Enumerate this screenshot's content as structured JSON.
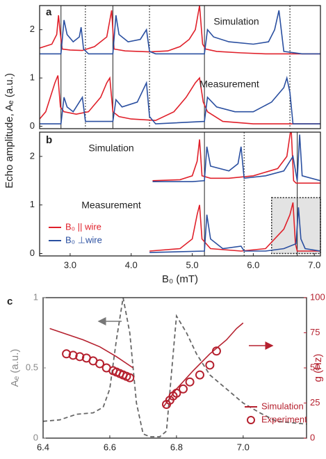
{
  "chart_data": [
    {
      "type": "line",
      "panel_label": "a",
      "ylabel": "Echo amplitude, Aₑ (a.u.)",
      "xlim": [
        2.5,
        7.1
      ],
      "ylim": [
        -0.05,
        2.5
      ],
      "yticks": [
        0,
        1,
        2
      ],
      "annotations": [
        "Simulation",
        "Measurement"
      ],
      "vlines": [
        {
          "value": 2.85,
          "style": "solid"
        },
        {
          "value": 3.25,
          "style": "dotted"
        },
        {
          "value": 3.7,
          "style": "solid"
        },
        {
          "value": 4.3,
          "style": "dotted"
        },
        {
          "value": 5.2,
          "style": "solid"
        },
        {
          "value": 6.6,
          "style": "dotted"
        }
      ],
      "series": [
        {
          "color": "#e0202a",
          "x": [
            2.5,
            2.7,
            2.78,
            2.81,
            2.84,
            2.87,
            3.0,
            3.2,
            3.4,
            3.6,
            3.68,
            3.72,
            3.9,
            4.3,
            4.6,
            4.8,
            4.95,
            5.05,
            5.12,
            5.17,
            5.22,
            5.4,
            5.8,
            6.2,
            6.6,
            7.1
          ],
          "values": [
            1.62,
            1.7,
            1.9,
            2.3,
            1.9,
            1.6,
            1.58,
            1.57,
            1.65,
            1.85,
            2.4,
            1.6,
            1.56,
            1.54,
            1.56,
            1.65,
            1.8,
            2.0,
            2.5,
            1.7,
            1.6,
            1.55,
            1.52,
            1.5,
            1.5,
            1.5
          ]
        },
        {
          "color": "#2a4fa0",
          "x": [
            2.5,
            2.85,
            2.9,
            2.95,
            3.05,
            3.15,
            3.18,
            3.22,
            3.3,
            3.7,
            3.75,
            3.8,
            3.95,
            4.15,
            4.25,
            4.3,
            4.4,
            5.2,
            5.25,
            5.35,
            5.6,
            6.0,
            6.25,
            6.35,
            6.42,
            6.5,
            6.8,
            7.1
          ],
          "values": [
            1.5,
            1.5,
            2.2,
            1.9,
            1.75,
            1.85,
            2.05,
            1.6,
            1.5,
            1.5,
            2.3,
            1.9,
            1.75,
            1.8,
            2.0,
            1.55,
            1.5,
            1.5,
            2.0,
            1.85,
            1.75,
            1.7,
            1.75,
            2.0,
            2.4,
            1.55,
            1.5,
            1.5
          ]
        },
        {
          "color": "#e0202a",
          "x": [
            2.5,
            2.6,
            2.75,
            2.8,
            2.84,
            2.9,
            3.1,
            3.3,
            3.5,
            3.6,
            3.65,
            3.7,
            3.8,
            4.0,
            4.4,
            4.7,
            4.9,
            5.05,
            5.12,
            5.18,
            5.25,
            5.5,
            6.0,
            6.6,
            7.1
          ],
          "values": [
            0.15,
            0.3,
            0.9,
            1.05,
            0.4,
            0.3,
            0.25,
            0.3,
            0.6,
            0.9,
            1.0,
            0.3,
            0.2,
            0.15,
            0.12,
            0.3,
            0.6,
            0.9,
            1.0,
            0.5,
            0.3,
            0.1,
            0.05,
            0.05,
            0.05
          ]
        },
        {
          "color": "#2a4fa0",
          "x": [
            2.5,
            2.85,
            2.9,
            2.95,
            3.05,
            3.15,
            3.2,
            3.25,
            3.7,
            3.75,
            3.85,
            4.1,
            4.25,
            4.3,
            4.4,
            5.2,
            5.25,
            5.4,
            5.7,
            6.0,
            6.3,
            6.5,
            6.55,
            6.6,
            6.65,
            7.1
          ],
          "values": [
            0.05,
            0.05,
            0.6,
            0.4,
            0.3,
            0.5,
            0.6,
            0.1,
            0.1,
            0.55,
            0.4,
            0.5,
            0.9,
            0.2,
            0.05,
            0.1,
            0.6,
            0.4,
            0.3,
            0.3,
            0.5,
            0.8,
            1.0,
            0.7,
            0.05,
            0.05
          ]
        }
      ]
    },
    {
      "type": "line",
      "panel_label": "b",
      "xlabel": "B₀ (mT)",
      "xlim": [
        2.5,
        7.1
      ],
      "ylim": [
        -0.05,
        2.5
      ],
      "yticks": [
        0,
        1,
        2
      ],
      "xticks": [
        {
          "value": 3,
          "label": "3.0"
        },
        {
          "value": 4,
          "label": "4.0"
        },
        {
          "value": 5,
          "label": "5.0"
        },
        {
          "value": 6,
          "label": "6.0"
        },
        {
          "value": 7,
          "label": "7.0"
        }
      ],
      "annotations": [
        "Simulation",
        "Measurement"
      ],
      "vlines": [
        {
          "value": 5.2,
          "style": "solid"
        },
        {
          "value": 5.85,
          "style": "dotted"
        },
        {
          "value": 6.72,
          "style": "solid"
        }
      ],
      "highlight": {
        "xlim": [
          6.3,
          7.1
        ],
        "ylim": [
          0,
          1.15
        ]
      },
      "series": [
        {
          "color": "#e0202a",
          "x": [
            4.35,
            4.8,
            5.0,
            5.08,
            5.12,
            5.16,
            5.3,
            5.6,
            6.0,
            6.4,
            6.55,
            6.62,
            6.66,
            6.7,
            6.9,
            7.1
          ],
          "values": [
            1.5,
            1.52,
            1.6,
            1.9,
            2.35,
            1.6,
            1.55,
            1.55,
            1.6,
            1.75,
            2.0,
            2.6,
            1.5,
            1.45,
            1.45,
            1.45
          ]
        },
        {
          "color": "#2a4fa0",
          "x": [
            4.35,
            5.0,
            5.2,
            5.24,
            5.3,
            5.6,
            5.75,
            5.8,
            5.85,
            6.2,
            6.5,
            6.65,
            6.72,
            6.76,
            6.8,
            7.1
          ],
          "values": [
            1.48,
            1.48,
            1.5,
            2.2,
            1.8,
            1.7,
            1.85,
            2.2,
            1.55,
            1.6,
            1.7,
            2.0,
            1.5,
            2.45,
            1.6,
            1.5
          ]
        },
        {
          "name": "B₀ || wire",
          "color": "#e0202a",
          "x": [
            4.3,
            4.8,
            5.0,
            5.08,
            5.12,
            5.16,
            5.3,
            5.8,
            6.2,
            6.5,
            6.6,
            6.65,
            6.69,
            6.72,
            6.9,
            7.1
          ],
          "values": [
            0.05,
            0.1,
            0.3,
            0.8,
            1.0,
            0.3,
            0.1,
            0.05,
            0.1,
            0.5,
            0.8,
            1.05,
            0.2,
            0.05,
            0.05,
            0.05
          ]
        },
        {
          "name": "B₀ ⊥wire",
          "color": "#2a4fa0",
          "x": [
            4.3,
            5.2,
            5.24,
            5.3,
            5.5,
            5.8,
            5.85,
            6.2,
            6.5,
            6.7,
            6.74,
            6.78,
            6.85,
            7.1
          ],
          "values": [
            0.02,
            0.05,
            0.8,
            0.3,
            0.1,
            0.15,
            0.05,
            0.05,
            0.1,
            0.2,
            0.95,
            0.3,
            0.1,
            0.05
          ]
        }
      ]
    },
    {
      "type": "line",
      "panel_label": "c",
      "xlabel": "B₀ (mT)",
      "ylabel": "Aₑ (a.u.)",
      "y2label": "g (Hz)",
      "xlim": [
        6.4,
        7.19
      ],
      "ylim": [
        0,
        1
      ],
      "y2lim": [
        0,
        100
      ],
      "xticks": [
        6.4,
        6.6,
        6.8,
        {
          "value": 7,
          "label": "7.0"
        }
      ],
      "yticks": [
        0,
        0.5,
        1
      ],
      "y2ticks": [
        0,
        25,
        50,
        75,
        100
      ],
      "series": [
        {
          "color": "#666666",
          "dashed": true,
          "x": [
            6.4,
            6.45,
            6.5,
            6.55,
            6.58,
            6.6,
            6.62,
            6.64,
            6.66,
            6.68,
            6.7,
            6.72,
            6.75,
            6.77,
            6.79,
            6.8,
            6.83,
            6.86,
            6.9,
            6.95,
            7.0,
            7.05,
            7.1,
            7.19
          ],
          "values": [
            0.12,
            0.13,
            0.17,
            0.18,
            0.22,
            0.35,
            0.7,
            1.0,
            0.75,
            0.25,
            0.03,
            0.01,
            0.01,
            0.05,
            0.6,
            0.87,
            0.75,
            0.6,
            0.45,
            0.35,
            0.25,
            0.18,
            0.12,
            0.1
          ]
        },
        {
          "name": "Simulation",
          "color": "#b5202e",
          "axis": "y2",
          "x": [
            6.42,
            6.47,
            6.52,
            6.57,
            6.62,
            6.67,
            6.7,
            6.76,
            6.8,
            6.85,
            6.9,
            6.95,
            6.98,
            7.0
          ],
          "values": [
            78,
            74,
            70,
            65,
            58,
            50,
            null,
            22,
            35,
            48,
            60,
            70,
            78,
            82
          ]
        },
        {
          "name": "Experiment",
          "color": "#b5202e",
          "axis": "y2",
          "marker": "circle",
          "x": [
            6.47,
            6.49,
            6.51,
            6.53,
            6.55,
            6.57,
            6.59,
            6.61,
            6.62,
            6.63,
            6.64,
            6.65,
            6.66,
            6.77,
            6.78,
            6.79,
            6.8,
            6.82,
            6.84,
            6.87,
            6.9,
            6.92
          ],
          "values": [
            60,
            59,
            58,
            57,
            55,
            53,
            50,
            48,
            47,
            46,
            45,
            44,
            43,
            24,
            27,
            30,
            32,
            35,
            40,
            45,
            52,
            62
          ]
        }
      ]
    }
  ]
}
